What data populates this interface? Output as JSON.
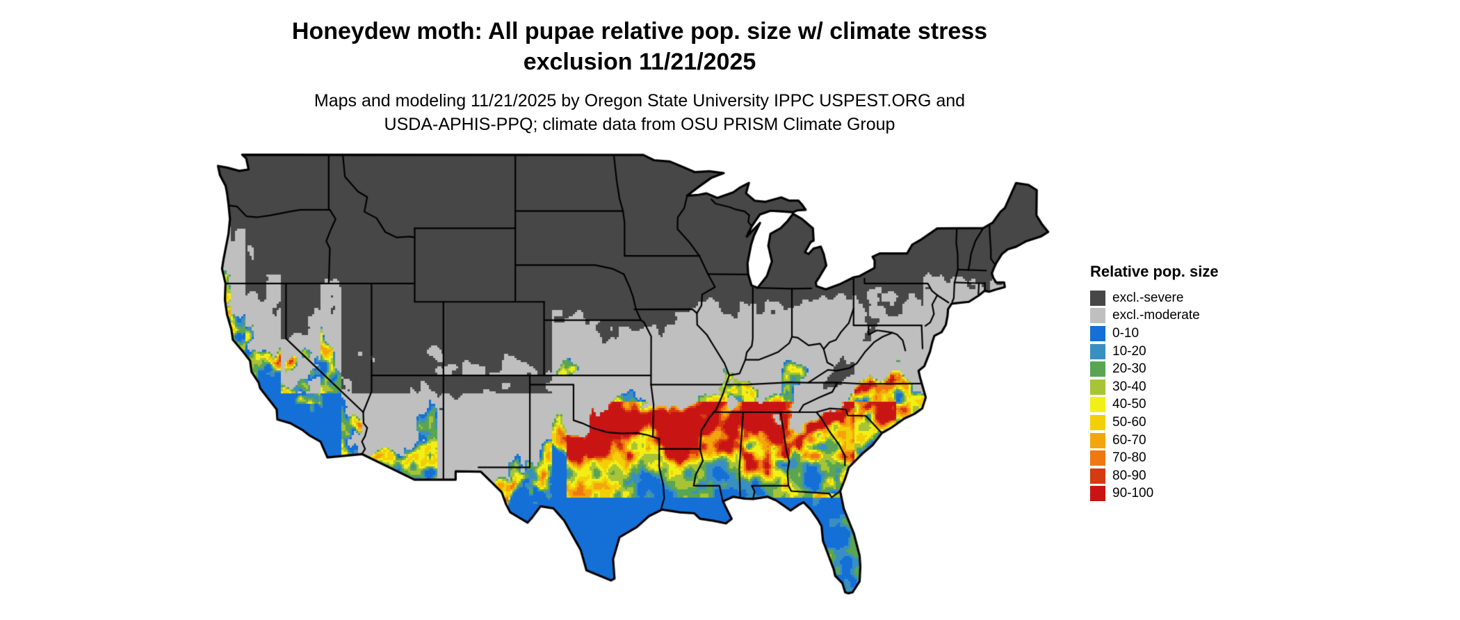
{
  "title": {
    "line1": "Honeydew moth: All pupae relative pop. size w/ climate stress",
    "line2": "exclusion 11/21/2025"
  },
  "subtitle": {
    "line1": "Maps and modeling 11/21/2025 by Oregon State University IPPC USPEST.ORG and",
    "line2": "USDA-APHIS-PPQ; climate data from OSU PRISM Climate Group"
  },
  "legend": {
    "title": "Relative pop. size",
    "entries": [
      {
        "label": "excl.-severe",
        "color": "#474747"
      },
      {
        "label": "excl.-moderate",
        "color": "#bfbfbf"
      },
      {
        "label": "0-10",
        "color": "#1470d6"
      },
      {
        "label": "10-20",
        "color": "#3a8fc1"
      },
      {
        "label": "20-30",
        "color": "#59a553"
      },
      {
        "label": "30-40",
        "color": "#a6c436"
      },
      {
        "label": "40-50",
        "color": "#f2ef16"
      },
      {
        "label": "50-60",
        "color": "#f3cf08"
      },
      {
        "label": "60-70",
        "color": "#f3a60b"
      },
      {
        "label": "70-80",
        "color": "#ef7911"
      },
      {
        "label": "80-90",
        "color": "#d63a10"
      },
      {
        "label": "90-100",
        "color": "#c91414"
      }
    ]
  }
}
